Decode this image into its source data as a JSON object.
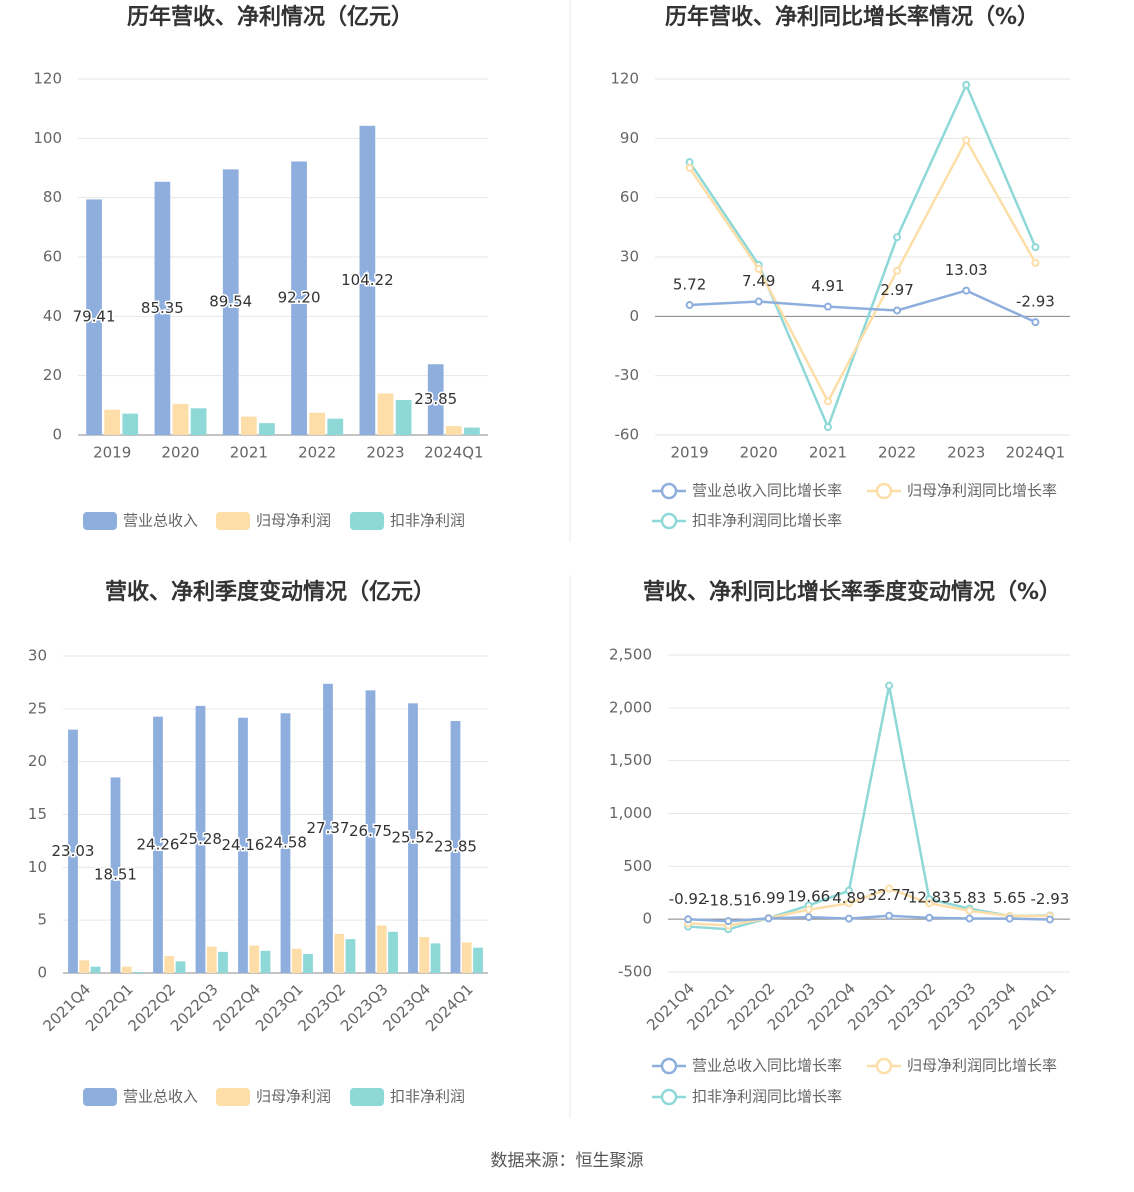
{
  "chart_data": [
    {
      "type": "bar",
      "title": "历年营收、净利情况（亿元）",
      "categories": [
        "2019",
        "2020",
        "2021",
        "2022",
        "2023",
        "2024Q1"
      ],
      "series": [
        {
          "name": "营业总收入",
          "color": "#8eaedd",
          "values": [
            79.41,
            85.35,
            89.54,
            92.2,
            104.22,
            23.85
          ],
          "value_labels": [
            "79.41",
            "85.35",
            "89.54",
            "92.20",
            "104.22",
            "23.85"
          ],
          "show_labels": true
        },
        {
          "name": "归母净利润",
          "color": "#fddea8",
          "values": [
            8.5,
            10.5,
            6.2,
            7.5,
            14.0,
            3.0
          ]
        },
        {
          "name": "扣非净利润",
          "color": "#8ed8d8",
          "values": [
            7.2,
            9.0,
            4.0,
            5.5,
            11.8,
            2.5
          ]
        }
      ],
      "ylim": [
        0,
        120
      ],
      "yticks": [
        0,
        20,
        40,
        60,
        80,
        100,
        120
      ],
      "grid": true,
      "legend": "bottom"
    },
    {
      "type": "line",
      "title": "历年营收、净利同比增长率情况（%）",
      "categories": [
        "2019",
        "2020",
        "2021",
        "2022",
        "2023",
        "2024Q1"
      ],
      "series": [
        {
          "name": "营业总收入同比增长率",
          "color": "#8eaedd",
          "values": [
            5.72,
            7.49,
            4.91,
            2.97,
            13.03,
            -2.93
          ],
          "show_labels": true
        },
        {
          "name": "归母净利润同比增长率",
          "color": "#fddea8",
          "values": [
            75,
            24,
            -43,
            23,
            89,
            27
          ]
        },
        {
          "name": "扣非净利润同比增长率",
          "color": "#8ed8d8",
          "values": [
            78,
            26,
            -56,
            40,
            117,
            35
          ]
        }
      ],
      "ylim": [
        -60,
        120
      ],
      "yticks": [
        -60,
        -30,
        0,
        30,
        60,
        90,
        120
      ],
      "grid": true,
      "legend": "bottom"
    },
    {
      "type": "bar",
      "title": "营收、净利季度变动情况（亿元）",
      "categories": [
        "2021Q4",
        "2022Q1",
        "2022Q2",
        "2022Q3",
        "2022Q4",
        "2023Q1",
        "2023Q2",
        "2023Q3",
        "2023Q4",
        "2024Q1"
      ],
      "series": [
        {
          "name": "营业总收入",
          "color": "#8eaedd",
          "values": [
            23.03,
            18.51,
            24.26,
            25.28,
            24.16,
            24.58,
            27.37,
            26.75,
            25.52,
            23.85
          ],
          "show_labels": true
        },
        {
          "name": "归母净利润",
          "color": "#fddea8",
          "values": [
            1.2,
            0.6,
            1.6,
            2.5,
            2.6,
            2.3,
            3.7,
            4.5,
            3.4,
            2.9
          ]
        },
        {
          "name": "扣非净利润",
          "color": "#8ed8d8",
          "values": [
            0.6,
            0.1,
            1.1,
            2.0,
            2.1,
            1.8,
            3.2,
            3.9,
            2.8,
            2.4
          ]
        }
      ],
      "ylim": [
        0,
        30
      ],
      "yticks": [
        0,
        5,
        10,
        15,
        20,
        25,
        30
      ],
      "grid": true,
      "legend": "bottom"
    },
    {
      "type": "line",
      "title": "营收、净利同比增长率季度变动情况（%）",
      "categories": [
        "2021Q4",
        "2022Q1",
        "2022Q2",
        "2022Q3",
        "2022Q4",
        "2023Q1",
        "2023Q2",
        "2023Q3",
        "2023Q4",
        "2024Q1"
      ],
      "series": [
        {
          "name": "营业总收入同比增长率",
          "color": "#8eaedd",
          "values": [
            -0.92,
            -18.51,
            6.99,
            19.66,
            4.89,
            32.77,
            12.83,
            5.83,
            5.65,
            -2.93
          ],
          "show_labels": true
        },
        {
          "name": "归母净利润同比增长率",
          "color": "#fddea8",
          "values": [
            -40,
            -60,
            10,
            90,
            150,
            290,
            150,
            80,
            30,
            30
          ]
        },
        {
          "name": "扣非净利润同比增长率",
          "color": "#8ed8d8",
          "values": [
            -70,
            -95,
            10,
            130,
            270,
            2210,
            190,
            100,
            30,
            35
          ]
        }
      ],
      "ylim": [
        -500,
        2500
      ],
      "yticks": [
        -500,
        0,
        500,
        {
          "value": 1000,
          "label": "1,000"
        },
        {
          "value": 1500,
          "label": "1,500"
        },
        {
          "value": 2000,
          "label": "2,000"
        },
        {
          "value": 2500,
          "label": "2,500"
        }
      ],
      "grid": true,
      "legend": "bottom"
    }
  ],
  "source": "数据来源：恒生聚源"
}
